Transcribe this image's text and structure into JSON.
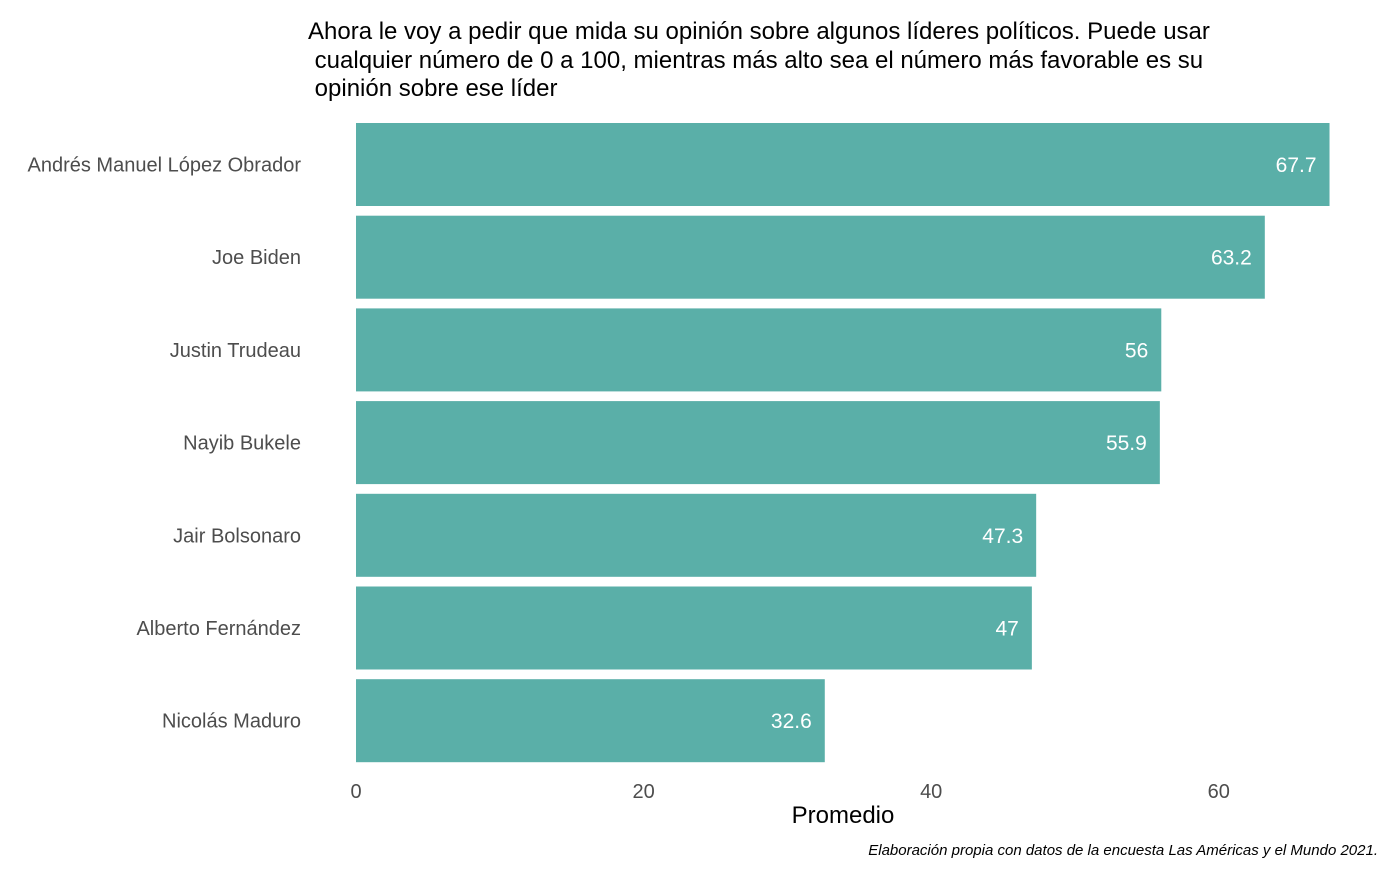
{
  "chart_data": {
    "type": "bar",
    "orientation": "horizontal",
    "title_lines": [
      "Ahora le voy a pedir que mida su opinión sobre algunos líderes políticos. Puede usar",
      " cualquier número de 0 a 100, mientras más alto sea el número más favorable es su",
      " opinión sobre ese líder"
    ],
    "categories": [
      "Andrés Manuel López Obrador",
      "Joe Biden",
      "Justin Trudeau",
      "Nayib Bukele",
      "Jair Bolsonaro",
      "Alberto Fernández",
      "Nicolás Maduro"
    ],
    "values": [
      67.7,
      63.2,
      56,
      55.9,
      47.3,
      47,
      32.6
    ],
    "value_labels": [
      "67.7",
      "63.2",
      "56",
      "55.9",
      "47.3",
      "47",
      "32.6"
    ],
    "xlabel": "Promedio",
    "ylabel": "",
    "xlim": [
      0,
      68.5
    ],
    "x_ticks": [
      0,
      20,
      40,
      60
    ],
    "x_tick_labels": [
      "0",
      "20",
      "40",
      "60"
    ],
    "grid": false,
    "legend": "none",
    "bar_color": "#5aafa8",
    "caption": "Elaboración propia con datos de la encuesta Las Américas y el Mundo 2021."
  }
}
